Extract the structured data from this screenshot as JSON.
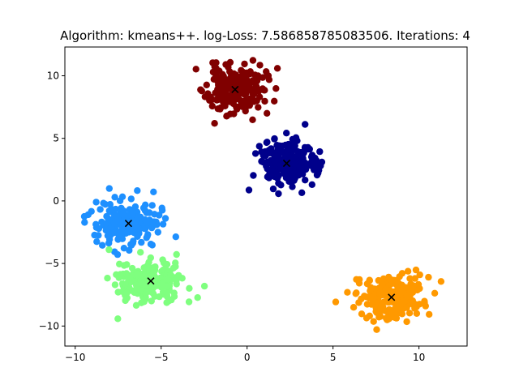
{
  "chart_data": {
    "type": "scatter",
    "title": "Algorithm: kmeans++. log-Loss: 7.586858785083506. Iterations: 4",
    "xlabel": "",
    "ylabel": "",
    "xlim": [
      -10.6,
      12.8
    ],
    "ylim": [
      -11.6,
      12.3
    ],
    "xticks": [
      -10,
      -5,
      0,
      5,
      10
    ],
    "yticks": [
      -10,
      -5,
      0,
      5,
      10
    ],
    "xtick_labels": [
      "−10",
      "−5",
      "0",
      "5",
      "10"
    ],
    "ytick_labels": [
      "−10",
      "−5",
      "0",
      "5",
      "10"
    ],
    "grid": false,
    "legend": false,
    "clusters": [
      {
        "color": "#800000",
        "center": [
          -0.7,
          8.9
        ],
        "spread": [
          0.85,
          0.95
        ],
        "count": 200,
        "seed": 11
      },
      {
        "color": "#00008b",
        "center": [
          2.3,
          3.0
        ],
        "spread": [
          0.85,
          0.95
        ],
        "count": 200,
        "seed": 23
      },
      {
        "color": "#1e90ff",
        "center": [
          -6.9,
          -1.8
        ],
        "spread": [
          0.95,
          0.9
        ],
        "count": 200,
        "seed": 37
      },
      {
        "color": "#7fff7f",
        "center": [
          -5.6,
          -6.4
        ],
        "spread": [
          0.95,
          0.9
        ],
        "count": 200,
        "seed": 41
      },
      {
        "color": "#ff9900",
        "center": [
          8.4,
          -7.7
        ],
        "spread": [
          0.95,
          0.9
        ],
        "count": 200,
        "seed": 53
      }
    ],
    "centroids": [
      [
        -0.7,
        8.9
      ],
      [
        2.3,
        3.0
      ],
      [
        -6.9,
        -1.8
      ],
      [
        -5.6,
        -6.4
      ],
      [
        8.4,
        -7.7
      ]
    ],
    "centroid_marker": "x",
    "centroid_color": "#000000"
  }
}
